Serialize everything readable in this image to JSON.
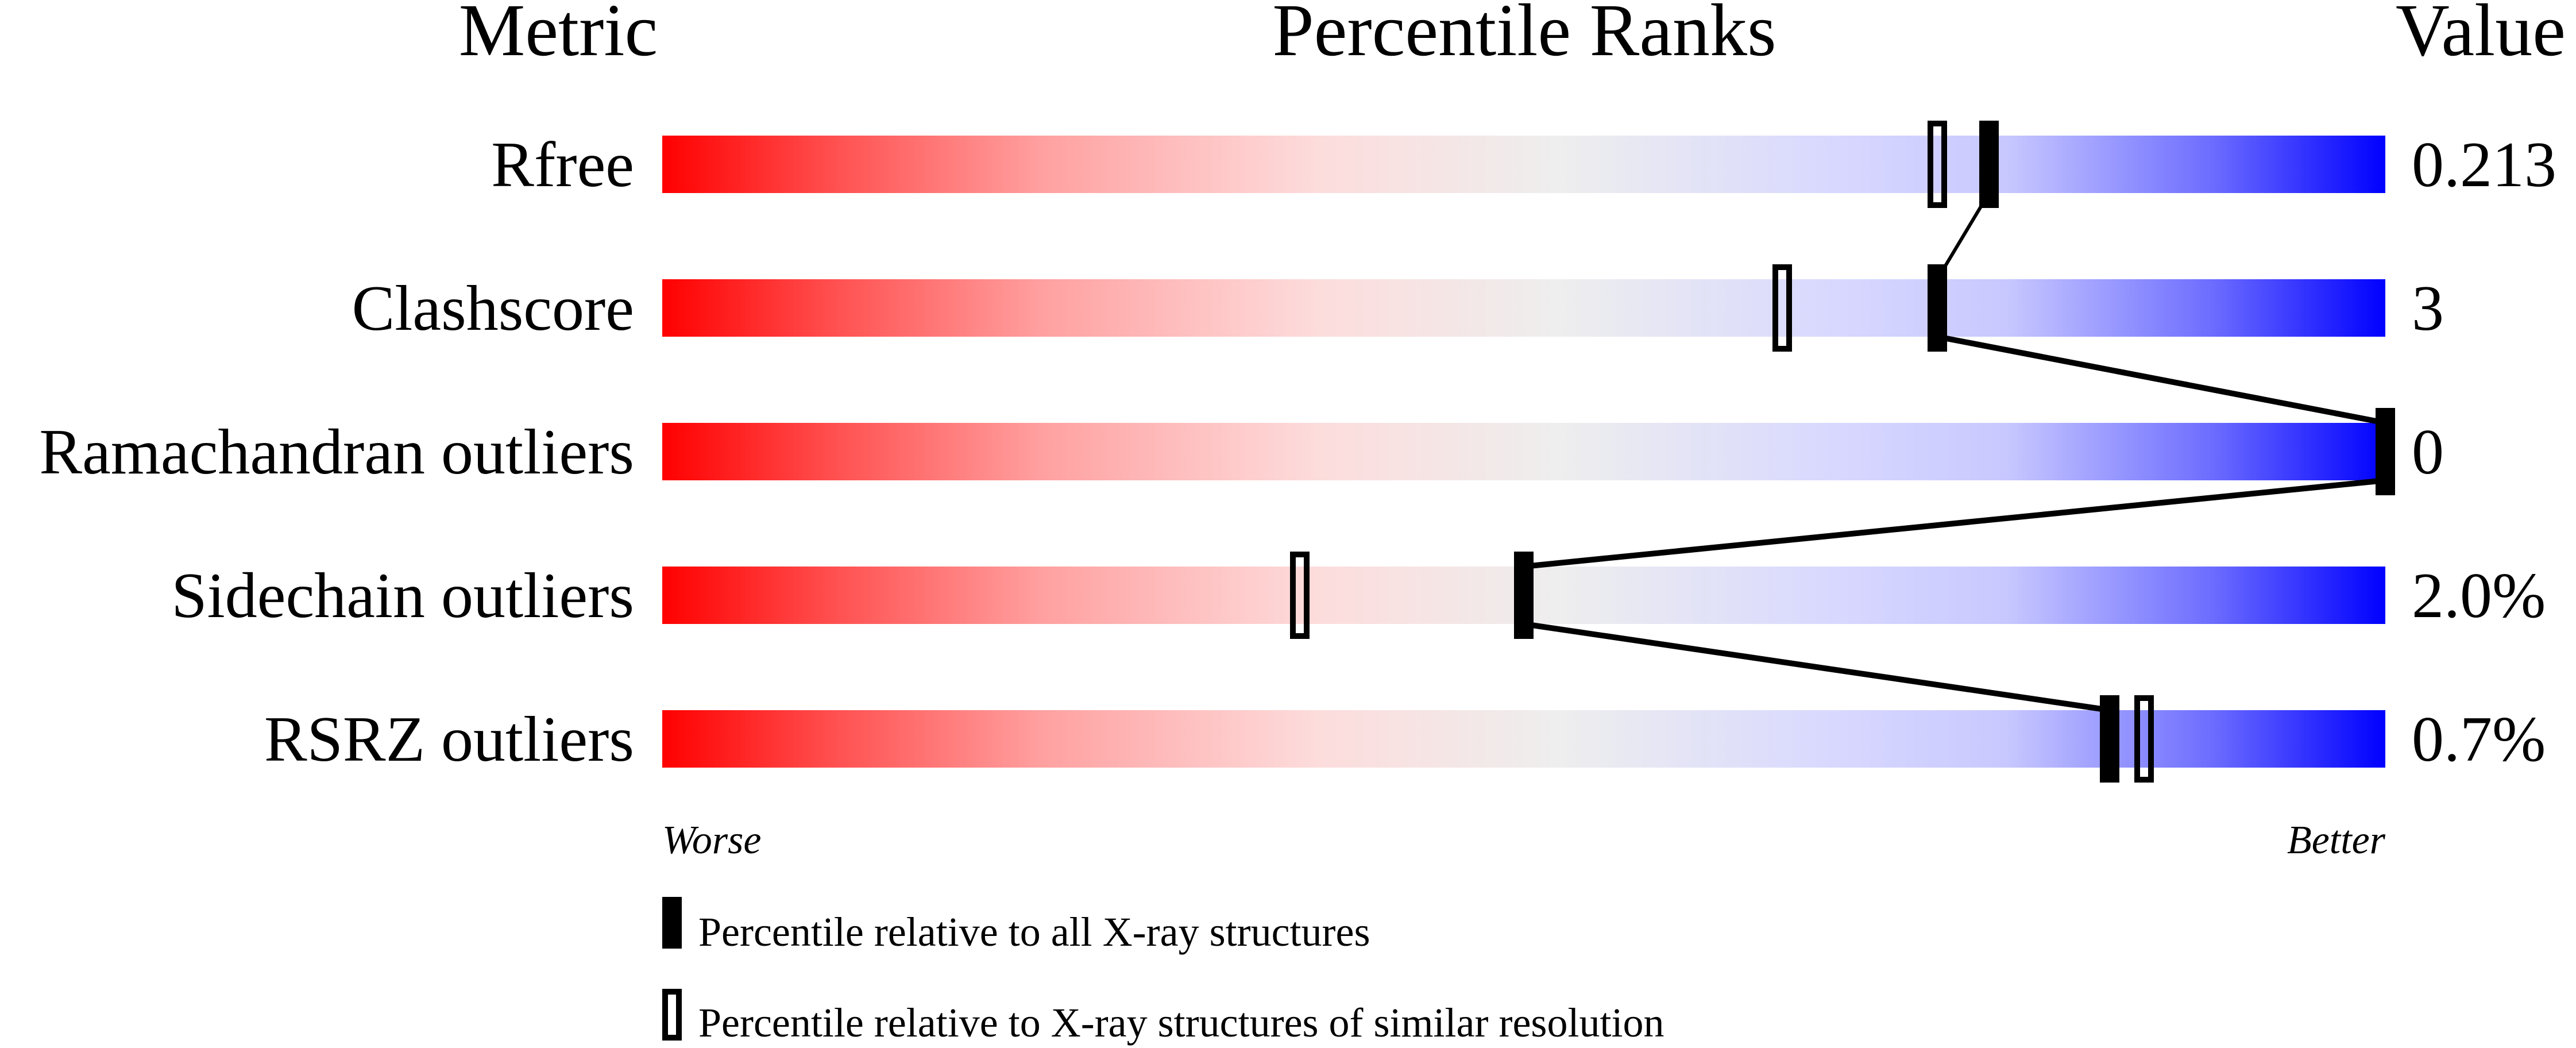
{
  "chart_data": {
    "type": "percentile-slider",
    "headers": {
      "metric": "Metric",
      "ranks": "Percentile Ranks",
      "value": "Value"
    },
    "xlim": [
      0,
      100
    ],
    "rows": [
      {
        "metric": "Rfree",
        "value": "0.213",
        "percentile_all": 77,
        "percentile_similar": 74
      },
      {
        "metric": "Clashscore",
        "value": "3",
        "percentile_all": 74,
        "percentile_similar": 65
      },
      {
        "metric": "Ramachandran outliers",
        "value": "0",
        "percentile_all": 100,
        "percentile_similar": 100
      },
      {
        "metric": "Sidechain outliers",
        "value": "2.0%",
        "percentile_all": 50,
        "percentile_similar": 37
      },
      {
        "metric": "RSRZ outliers",
        "value": "0.7%",
        "percentile_all": 84,
        "percentile_similar": 86
      }
    ],
    "axis_ends": {
      "left": "Worse",
      "right": "Better"
    },
    "legend": {
      "all": "Percentile relative to all X-ray structures",
      "similar": "Percentile relative to X-ray structures of similar resolution"
    },
    "colors": {
      "worse": "#ff0000",
      "middle": "#eeeeee",
      "better": "#0000ff",
      "marker": "#000000"
    }
  }
}
